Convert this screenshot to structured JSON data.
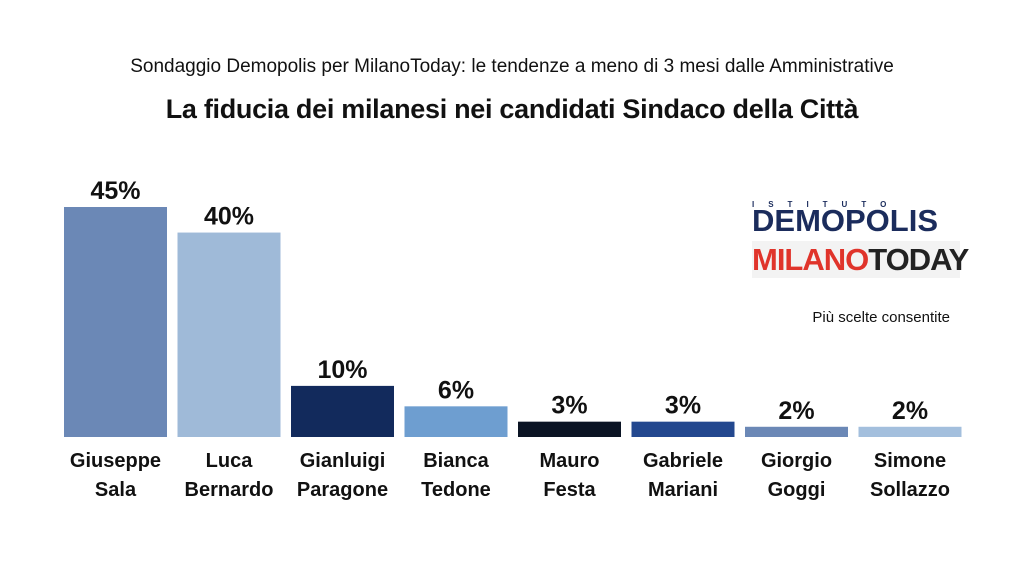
{
  "header": {
    "subtitle": "Sondaggio Demopolis per MilanoToday: le tendenze a meno di 3 mesi dalle Amministrative",
    "title": "La fiducia dei milanesi nei candidati Sindaco della Città"
  },
  "logos": {
    "istituto": "ISTITUTO",
    "demopolis": "DEMOPOLIS",
    "milano": "MILANO",
    "today": "TODAY"
  },
  "note": "Più scelte consentite",
  "chart_data": {
    "type": "bar",
    "title": "La fiducia dei milanesi nei candidati Sindaco della Città",
    "categories": [
      [
        "Giuseppe",
        "Sala"
      ],
      [
        "Luca",
        "Bernardo"
      ],
      [
        "Gianluigi",
        "Paragone"
      ],
      [
        "Bianca",
        "Tedone"
      ],
      [
        "Mauro",
        "Festa"
      ],
      [
        "Gabriele",
        "Mariani"
      ],
      [
        "Giorgio",
        "Goggi"
      ],
      [
        "Simone",
        "Sollazzo"
      ]
    ],
    "values": [
      45,
      40,
      10,
      6,
      3,
      3,
      2,
      2
    ],
    "value_labels": [
      "45%",
      "40%",
      "10%",
      "6%",
      "3%",
      "3%",
      "2%",
      "2%"
    ],
    "colors": [
      "#6b88b6",
      "#9fbad8",
      "#122a5c",
      "#6e9ed0",
      "#0b1424",
      "#23488f",
      "#6b88b6",
      "#a3bfdd"
    ],
    "unit": "%",
    "ylim": [
      0,
      45
    ],
    "grid": false,
    "legend": "none"
  }
}
